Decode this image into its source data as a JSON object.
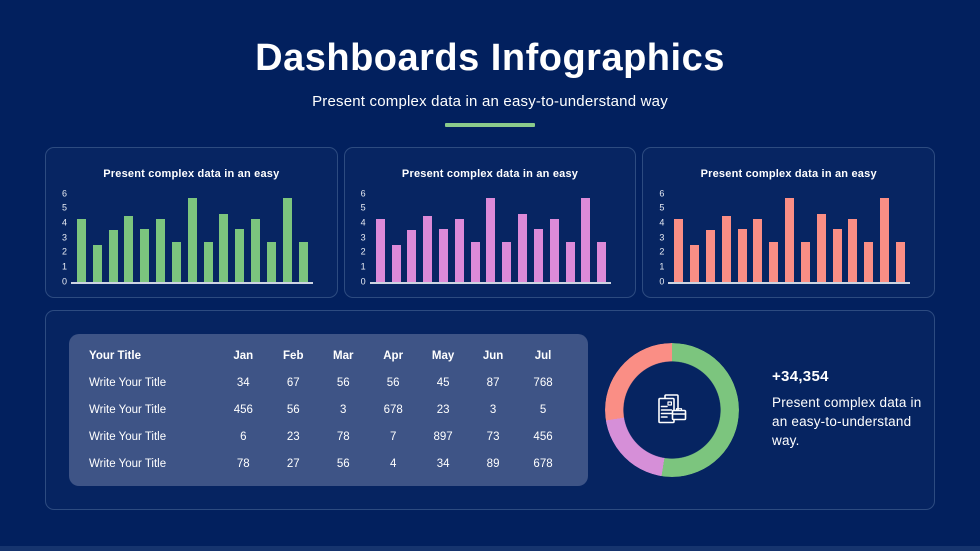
{
  "page": {
    "title": "Dashboards Infographics",
    "subtitle": "Present complex data in an easy-to-understand way"
  },
  "colors": {
    "background": "#02205e",
    "card_border": "#2d4b80",
    "table_panel": "#3e5486",
    "divider_green": "#8bcb8b",
    "axis_line": "#ccd4e2",
    "text": "#ffffff",
    "green": "#7cc57e",
    "pink": "#dc8ad8",
    "salmon": "#fa8e85",
    "purple": "#d68fd8"
  },
  "chart_data": [
    {
      "type": "bar",
      "title": "Present complex data in an easy",
      "values": [
        4.3,
        2.5,
        3.5,
        4.5,
        3.6,
        4.3,
        2.7,
        5.7,
        2.7,
        4.6,
        3.6,
        4.3,
        2.7,
        5.7,
        2.7
      ],
      "yticks": [
        6,
        5,
        4,
        3,
        2,
        1,
        0
      ],
      "ylim": [
        0,
        6
      ],
      "bar_color": "#7cc57e",
      "grid": false,
      "legend": "none"
    },
    {
      "type": "bar",
      "title": "Present complex data in an easy",
      "values": [
        4.3,
        2.5,
        3.5,
        4.5,
        3.6,
        4.3,
        2.7,
        5.7,
        2.7,
        4.6,
        3.6,
        4.3,
        2.7,
        5.7,
        2.7
      ],
      "yticks": [
        6,
        5,
        4,
        3,
        2,
        1,
        0
      ],
      "ylim": [
        0,
        6
      ],
      "bar_color": "#dc8ad8",
      "grid": false,
      "legend": "none"
    },
    {
      "type": "bar",
      "title": "Present complex data in an easy",
      "values": [
        4.3,
        2.5,
        3.5,
        4.5,
        3.6,
        4.3,
        2.7,
        5.7,
        2.7,
        4.6,
        3.6,
        4.3,
        2.7,
        5.7,
        2.7
      ],
      "yticks": [
        6,
        5,
        4,
        3,
        2,
        1,
        0
      ],
      "ylim": [
        0,
        6
      ],
      "bar_color": "#fa8e85",
      "grid": false,
      "legend": "none"
    },
    {
      "type": "table",
      "columns": [
        "Your Title",
        "Jan",
        "Feb",
        "Mar",
        "Apr",
        "May",
        "Jun",
        "Jul"
      ],
      "rows": [
        [
          "Write Your Title",
          "34",
          "67",
          "56",
          "56",
          "45",
          "87",
          "768"
        ],
        [
          "Write Your Title",
          "456",
          "56",
          "3",
          "678",
          "23",
          "3",
          "5"
        ],
        [
          "Write Your Title",
          "6",
          "23",
          "78",
          "7",
          "897",
          "73",
          "456"
        ],
        [
          "Write Your Title",
          "78",
          "27",
          "56",
          "4",
          "34",
          "89",
          "678"
        ]
      ]
    },
    {
      "type": "pie",
      "donut": true,
      "center_icon": "documents-report-icon",
      "slices": [
        {
          "name": "green segment",
          "value": 52.5,
          "color": "#7cc57e"
        },
        {
          "name": "purple segment",
          "value": 20.0,
          "color": "#d68fd8"
        },
        {
          "name": "salmon segment",
          "value": 27.5,
          "color": "#fa8e85"
        }
      ]
    }
  ],
  "stat": {
    "value": "+34,354",
    "description": "Present complex data in an easy-to-understand way."
  }
}
